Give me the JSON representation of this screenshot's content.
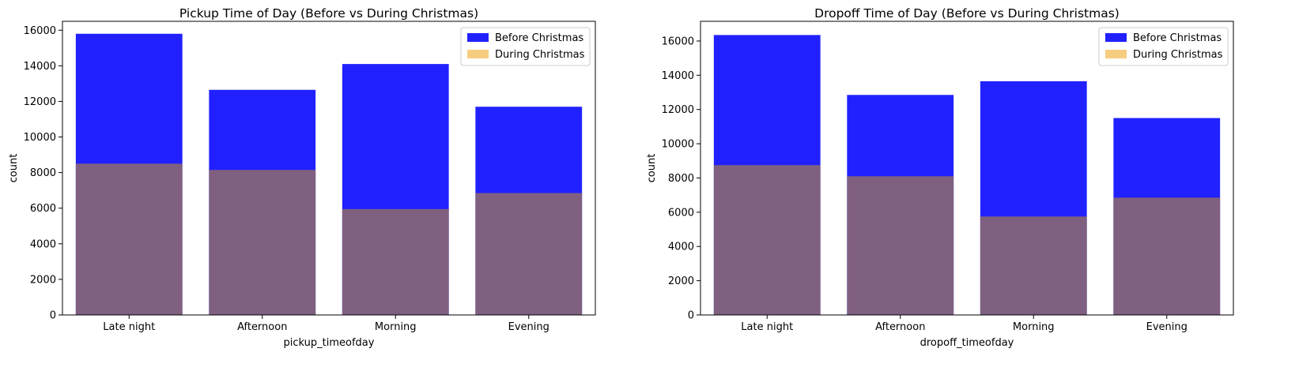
{
  "colors": {
    "before": "#0000ff",
    "during": "#f5c468",
    "overlap": "#806080"
  },
  "chart_data": [
    {
      "type": "bar",
      "title": "Pickup Time of Day (Before vs During Christmas)",
      "xlabel": "pickup_timeofday",
      "ylabel": "count",
      "categories": [
        "Late night",
        "Afternoon",
        "Morning",
        "Evening"
      ],
      "series": [
        {
          "name": "Before Christmas",
          "values": [
            15800,
            12650,
            14100,
            11700
          ]
        },
        {
          "name": "During Christmas",
          "values": [
            8500,
            8150,
            5950,
            6850
          ]
        }
      ],
      "ylim": [
        0,
        16500
      ],
      "yticks": [
        0,
        2000,
        4000,
        6000,
        8000,
        10000,
        12000,
        14000,
        16000
      ],
      "legend": "top-right",
      "grid": false
    },
    {
      "type": "bar",
      "title": "Dropoff Time of Day (Before vs During Christmas)",
      "xlabel": "dropoff_timeofday",
      "ylabel": "count",
      "categories": [
        "Late night",
        "Afternoon",
        "Morning",
        "Evening"
      ],
      "series": [
        {
          "name": "Before Christmas",
          "values": [
            16350,
            12850,
            13650,
            11500
          ]
        },
        {
          "name": "During Christmas",
          "values": [
            8750,
            8100,
            5750,
            6850
          ]
        }
      ],
      "ylim": [
        0,
        17150
      ],
      "yticks": [
        0,
        2000,
        4000,
        6000,
        8000,
        10000,
        12000,
        14000,
        16000
      ],
      "legend": "top-right",
      "grid": false
    }
  ]
}
